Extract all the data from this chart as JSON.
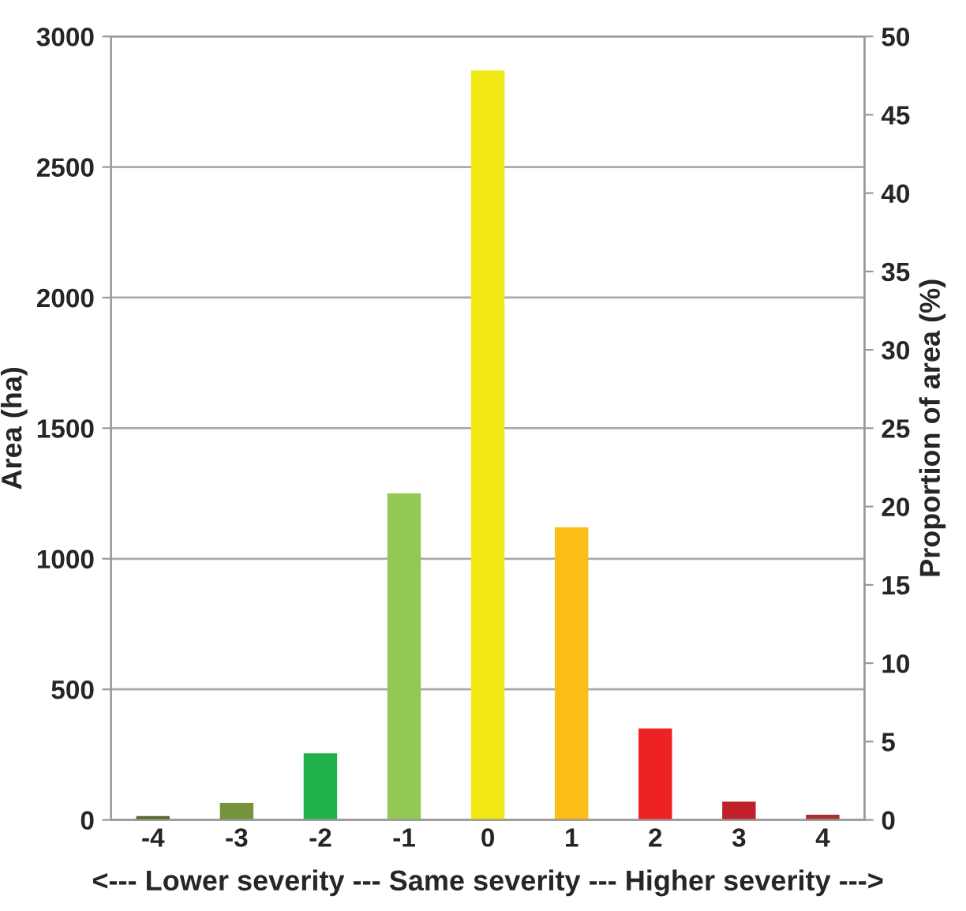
{
  "chart_data": {
    "type": "bar",
    "categories": [
      "-4",
      "-3",
      "-2",
      "-1",
      "0",
      "1",
      "2",
      "3",
      "4"
    ],
    "values": [
      15,
      65,
      255,
      1250,
      2870,
      1120,
      350,
      70,
      20
    ],
    "colors": [
      "#556b2f",
      "#76923c",
      "#20b04c",
      "#92c955",
      "#f2e816",
      "#fcbd16",
      "#ee2124",
      "#c0202a",
      "#a83232"
    ],
    "xlabel": "<--- Lower severity --- Same severity --- Higher severity --->",
    "ylabel": "Area (ha)",
    "y2label": "Proportion of area (%)",
    "ylim": [
      0,
      3000
    ],
    "yticks": [
      0,
      500,
      1000,
      1500,
      2000,
      2500,
      3000
    ],
    "y2lim": [
      0,
      50
    ],
    "y2ticks": [
      0,
      5,
      10,
      15,
      20,
      25,
      30,
      35,
      40,
      45,
      50
    ],
    "grid": "y"
  }
}
